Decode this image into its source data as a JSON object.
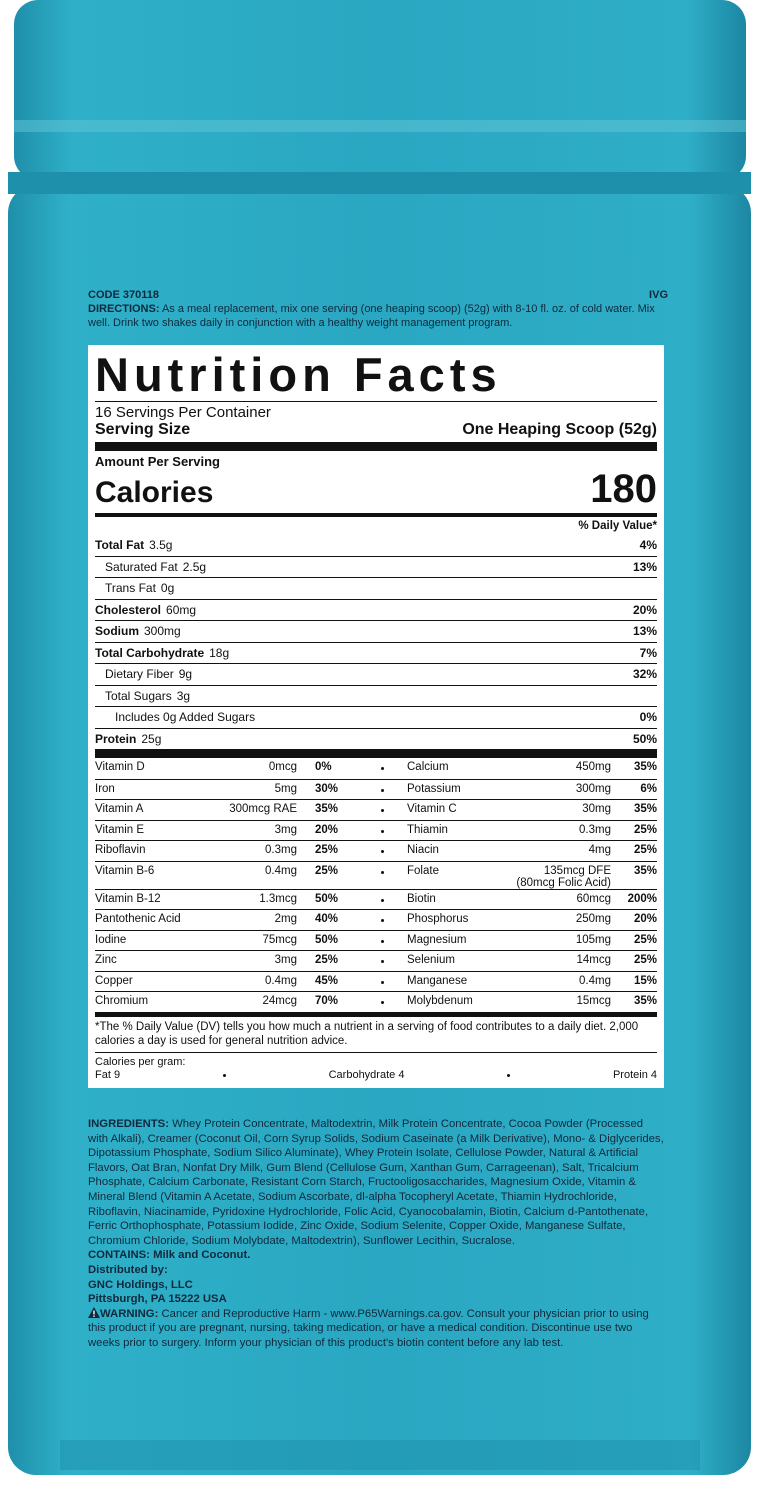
{
  "code": "CODE 370118",
  "brand_mark": "IVG",
  "directions": {
    "label": "DIRECTIONS:",
    "text": "As a meal replacement, mix one serving (one heaping scoop) (52g) with 8-10 fl. oz. of cold water. Mix well. Drink two shakes daily in conjunction with a healthy weight management program."
  },
  "facts": {
    "title": "Nutrition Facts",
    "servings": "16 Servings Per Container",
    "serving_size_label": "Serving Size",
    "serving_size": "One Heaping Scoop (52g)",
    "amount_per_serving": "Amount Per Serving",
    "calories_label": "Calories",
    "calories": "180",
    "daily_value": "% Daily Value*",
    "nutrients": [
      {
        "name": "Total Fat",
        "amount": "3.5g",
        "dv": "4%",
        "sub": [
          {
            "name": "Saturated Fat",
            "amount": "2.5g",
            "dv": "13%"
          },
          {
            "name": "Trans Fat",
            "amount": "0g"
          }
        ]
      },
      {
        "name": "Cholesterol",
        "amount": "60mg",
        "dv": "20%"
      },
      {
        "name": "Sodium",
        "amount": "300mg",
        "dv": "13%"
      },
      {
        "name": "Total Carbohydrate",
        "amount": "18g",
        "dv": "7%",
        "sub": [
          {
            "name": "Dietary Fiber",
            "amount": "9g",
            "dv": "32%"
          },
          {
            "name": "Total Sugars",
            "amount": "3g",
            "sub": [
              {
                "name": "Includes 0g Added Sugars",
                "dv": "0%"
              }
            ]
          }
        ]
      },
      {
        "name": "Protein",
        "amount": "25g",
        "dv": "50%"
      }
    ],
    "vitamins": [
      [
        {
          "name": "Vitamin D",
          "amount": "0mcg",
          "dv": "0%"
        },
        {
          "name": "Calcium",
          "amount": "450mg",
          "dv": "35%"
        }
      ],
      [
        {
          "name": "Iron",
          "amount": "5mg",
          "dv": "30%"
        },
        {
          "name": "Potassium",
          "amount": "300mg",
          "dv": "6%"
        }
      ],
      [
        {
          "name": "Vitamin A",
          "amount": "300mcg RAE",
          "dv": "35%"
        },
        {
          "name": "Vitamin C",
          "amount": "30mg",
          "dv": "35%"
        }
      ],
      [
        {
          "name": "Vitamin E",
          "amount": "3mg",
          "dv": "20%"
        },
        {
          "name": "Thiamin",
          "amount": "0.3mg",
          "dv": "25%"
        }
      ],
      [
        {
          "name": "Riboflavin",
          "amount": "0.3mg",
          "dv": "25%"
        },
        {
          "name": "Niacin",
          "amount": "4mg",
          "dv": "25%"
        }
      ],
      [
        {
          "name": "Vitamin B-6",
          "amount": "0.4mg",
          "dv": "25%"
        },
        {
          "name": "Folate",
          "amount": "135mcg DFE",
          "note": "(80mcg Folic Acid)",
          "dv": "35%"
        }
      ],
      [
        {
          "name": "Vitamin B-12",
          "amount": "1.3mcg",
          "dv": "50%"
        },
        {
          "name": "Biotin",
          "amount": "60mcg",
          "dv": "200%"
        }
      ],
      [
        {
          "name": "Pantothenic Acid",
          "amount": "2mg",
          "dv": "40%"
        },
        {
          "name": "Phosphorus",
          "amount": "250mg",
          "dv": "20%"
        }
      ],
      [
        {
          "name": "Iodine",
          "amount": "75mcg",
          "dv": "50%"
        },
        {
          "name": "Magnesium",
          "amount": "105mg",
          "dv": "25%"
        }
      ],
      [
        {
          "name": "Zinc",
          "amount": "3mg",
          "dv": "25%"
        },
        {
          "name": "Selenium",
          "amount": "14mcg",
          "dv": "25%"
        }
      ],
      [
        {
          "name": "Copper",
          "amount": "0.4mg",
          "dv": "45%"
        },
        {
          "name": "Manganese",
          "amount": "0.4mg",
          "dv": "15%"
        }
      ],
      [
        {
          "name": "Chromium",
          "amount": "24mcg",
          "dv": "70%"
        },
        {
          "name": "Molybdenum",
          "amount": "15mcg",
          "dv": "35%"
        }
      ]
    ],
    "footnote": "*The % Daily Value (DV) tells you how much a nutrient in a serving of food contributes to a daily diet. 2,000 calories a day is used for general nutrition advice.",
    "calories_per_gram": {
      "label": "Calories per gram:",
      "fat": "Fat 9",
      "carbohydrate": "Carbohydrate 4",
      "protein": "Protein 4"
    }
  },
  "ingredients": {
    "label": "INGREDIENTS:",
    "text": "Whey Protein Concentrate, Maltodextrin, Milk Protein Concentrate, Cocoa Powder (Processed with Alkali), Creamer (Coconut Oil, Corn Syrup Solids, Sodium Caseinate (a Milk Derivative), Mono- & Diglycerides, Dipotassium Phosphate, Sodium Silico Aluminate), Whey Protein Isolate, Cellulose Powder, Natural & Artificial Flavors, Oat Bran, Nonfat Dry Milk, Gum Blend (Cellulose Gum, Xanthan Gum, Carrageenan), Salt, Tricalcium Phosphate, Calcium Carbonate, Resistant Corn Starch, Fructooligosaccharides, Magnesium Oxide, Vitamin & Mineral Blend (Vitamin A Acetate, Sodium Ascorbate, dl-alpha Tocopheryl Acetate, Thiamin Hydrochloride, Riboflavin, Niacinamide, Pyridoxine Hydrochloride, Folic Acid, Cyanocobalamin, Biotin, Calcium d-Pantothenate, Ferric Orthophosphate, Potassium Iodide, Zinc Oxide, Sodium Selenite, Copper Oxide, Manganese Sulfate, Chromium Chloride, Sodium Molybdate, Maltodextrin), Sunflower Lecithin, Sucralose."
  },
  "contains": {
    "label": "CONTAINS:",
    "text": "Milk and Coconut."
  },
  "distributor": {
    "label": "Distributed by:",
    "name": "GNC Holdings, LLC",
    "address": "Pittsburgh, PA 15222 USA"
  },
  "warning": {
    "label": "WARNING:",
    "text": "Cancer and Reproductive Harm - www.P65Warnings.ca.gov. Consult your physician prior to using this product if you are pregnant, nursing, taking medication, or have a medical condition. Discontinue use two weeks prior to surgery. Inform your physician of this product's biotin content before any lab test."
  }
}
